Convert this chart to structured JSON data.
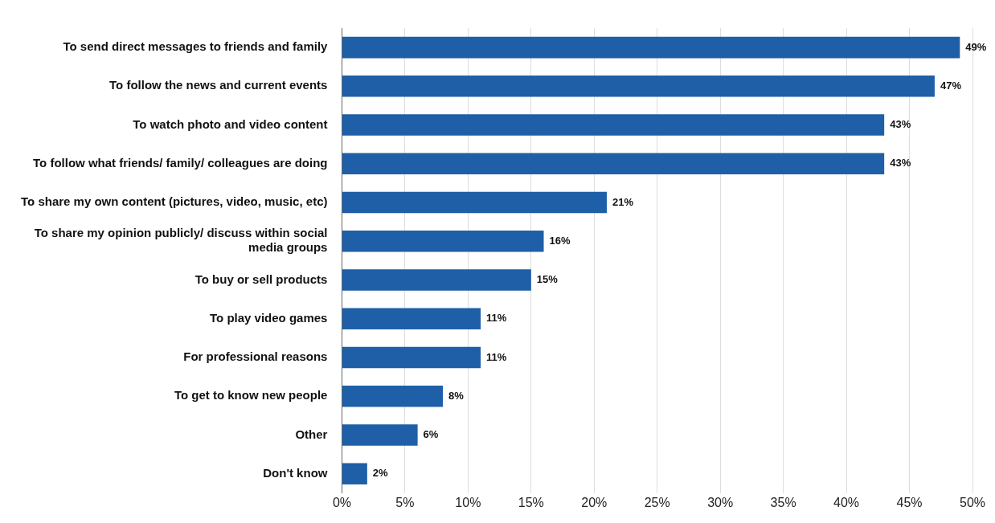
{
  "chart_data": {
    "type": "bar",
    "orientation": "horizontal",
    "categories": [
      "To send direct messages to friends and family",
      "To follow the news and current events",
      "To watch photo and video content",
      "To follow what friends/ family/ colleagues are doing",
      "To share my own content (pictures, video, music, etc)",
      "To share my opinion publicly/ discuss within social media groups",
      "To buy or sell products",
      "To play video games",
      "For professional reasons",
      "To get to know new people",
      "Other",
      "Don't know"
    ],
    "values": [
      49,
      47,
      43,
      43,
      21,
      16,
      15,
      11,
      11,
      8,
      6,
      2
    ],
    "value_labels": [
      "49%",
      "47%",
      "43%",
      "43%",
      "21%",
      "16%",
      "15%",
      "11%",
      "11%",
      "8%",
      "6%",
      "2%"
    ],
    "color": "#1f5fa8",
    "xlim": [
      0,
      50
    ],
    "xticks": [
      {
        "value": 0,
        "label": "0%"
      },
      {
        "value": 5,
        "label": "5%"
      },
      {
        "value": 10,
        "label": "10%"
      },
      {
        "value": 15,
        "label": "15%"
      },
      {
        "value": 20,
        "label": "20%"
      },
      {
        "value": 25,
        "label": "25%"
      },
      {
        "value": 30,
        "label": "30%"
      },
      {
        "value": 35,
        "label": "35%"
      },
      {
        "value": 40,
        "label": "40%"
      },
      {
        "value": 45,
        "label": "45%"
      },
      {
        "value": 50,
        "label": "50%"
      }
    ],
    "grid": "x",
    "legend": false
  }
}
